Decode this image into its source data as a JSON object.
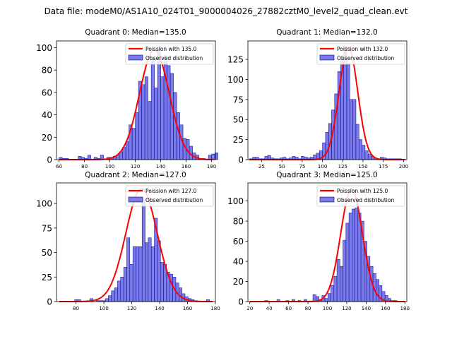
{
  "suptitle": "Data file: modeM0/AS1A10_024T01_9000004026_27882cztM0_level2_quad_clean.evt",
  "chart_data": [
    {
      "type": "bar",
      "title": "Quadrant 0: Median=135.0",
      "xlim": [
        58,
        183
      ],
      "ylim": [
        0,
        106
      ],
      "xticks": [
        60,
        80,
        100,
        120,
        140,
        160,
        180
      ],
      "yticks": [
        0,
        20,
        40,
        60,
        80,
        100
      ],
      "bin_start": 60,
      "bin_width": 2.5,
      "counts": [
        2,
        1,
        1,
        0,
        0,
        0,
        3,
        2,
        1,
        4,
        0,
        2,
        1,
        4,
        0,
        2,
        2,
        3,
        4,
        7,
        11,
        16,
        31,
        28,
        42,
        70,
        67,
        74,
        52,
        90,
        64,
        101,
        74,
        93,
        84,
        77,
        60,
        42,
        31,
        19,
        18,
        12,
        6,
        4,
        1,
        1,
        0,
        4,
        5,
        6
      ],
      "series": [
        {
          "name": "Poission with 135.0",
          "kind": "line",
          "color": "#ff0000",
          "mu": 135.0,
          "peak": 98
        },
        {
          "name": "Observed distribution",
          "kind": "hist",
          "color": "#7b7bea"
        }
      ]
    },
    {
      "type": "bar",
      "title": "Quadrant 1: Median=132.0",
      "xlim": [
        8,
        204
      ],
      "ylim": [
        0,
        148
      ],
      "xticks": [
        25,
        50,
        75,
        100,
        125,
        150,
        175,
        200
      ],
      "yticks": [
        0,
        25,
        50,
        75,
        100,
        125
      ],
      "bin_start": 10,
      "bin_width": 3.75,
      "counts": [
        1,
        3,
        3,
        1,
        1,
        4,
        5,
        2,
        1,
        1,
        2,
        3,
        1,
        2,
        4,
        3,
        1,
        4,
        3,
        2,
        3,
        6,
        8,
        11,
        21,
        34,
        45,
        62,
        82,
        110,
        126,
        141,
        120,
        75,
        75,
        44,
        25,
        18,
        11,
        7,
        4,
        2,
        1,
        3,
        2,
        1,
        1,
        1,
        1,
        1
      ],
      "series": [
        {
          "name": "Poission with 132.0",
          "kind": "line",
          "color": "#ff0000",
          "mu": 132.0,
          "peak": 140
        },
        {
          "name": "Observed distribution",
          "kind": "hist",
          "color": "#7b7bea"
        }
      ]
    },
    {
      "type": "bar",
      "title": "Quadrant 2: Median=127.0",
      "xlim": [
        66,
        180
      ],
      "ylim": [
        0,
        121
      ],
      "xticks": [
        80,
        100,
        120,
        140,
        160,
        180
      ],
      "yticks": [
        0,
        25,
        50,
        75,
        100
      ],
      "bin_start": 68,
      "bin_width": 2.2,
      "counts": [
        0,
        0,
        0,
        0,
        0,
        2,
        2,
        0,
        0,
        1,
        3,
        0,
        1,
        1,
        1,
        3,
        6,
        11,
        14,
        21,
        25,
        35,
        65,
        38,
        56,
        56,
        56,
        104,
        60,
        65,
        56,
        85,
        62,
        40,
        38,
        30,
        28,
        25,
        19,
        14,
        8,
        5,
        3,
        2,
        1,
        0,
        0,
        0,
        2,
        0
      ],
      "series": [
        {
          "name": "Poission with 127.0",
          "kind": "line",
          "color": "#ff0000",
          "mu": 127.0,
          "peak": 115
        },
        {
          "name": "Observed distribution",
          "kind": "hist",
          "color": "#7b7bea"
        }
      ]
    },
    {
      "type": "bar",
      "title": "Quadrant 3: Median=125.0",
      "xlim": [
        18,
        182
      ],
      "ylim": [
        0,
        118
      ],
      "xticks": [
        20,
        40,
        60,
        80,
        100,
        120,
        140,
        160,
        180
      ],
      "yticks": [
        0,
        20,
        40,
        60,
        80,
        100
      ],
      "bin_start": 20,
      "bin_width": 3.1,
      "counts": [
        0,
        0,
        0,
        0,
        0,
        1,
        0,
        0,
        0,
        2,
        0,
        0,
        1,
        0,
        2,
        0,
        1,
        0,
        2,
        0,
        0,
        7,
        5,
        1,
        6,
        3,
        8,
        16,
        25,
        42,
        35,
        61,
        78,
        88,
        92,
        93,
        88,
        80,
        60,
        45,
        35,
        28,
        22,
        16,
        10,
        6,
        3,
        1,
        1,
        0
      ],
      "series": [
        {
          "name": "Poission with 125.0",
          "kind": "line",
          "color": "#ff0000",
          "mu": 125.0,
          "peak": 112
        },
        {
          "name": "Observed distribution",
          "kind": "hist",
          "color": "#7b7bea"
        }
      ]
    }
  ]
}
